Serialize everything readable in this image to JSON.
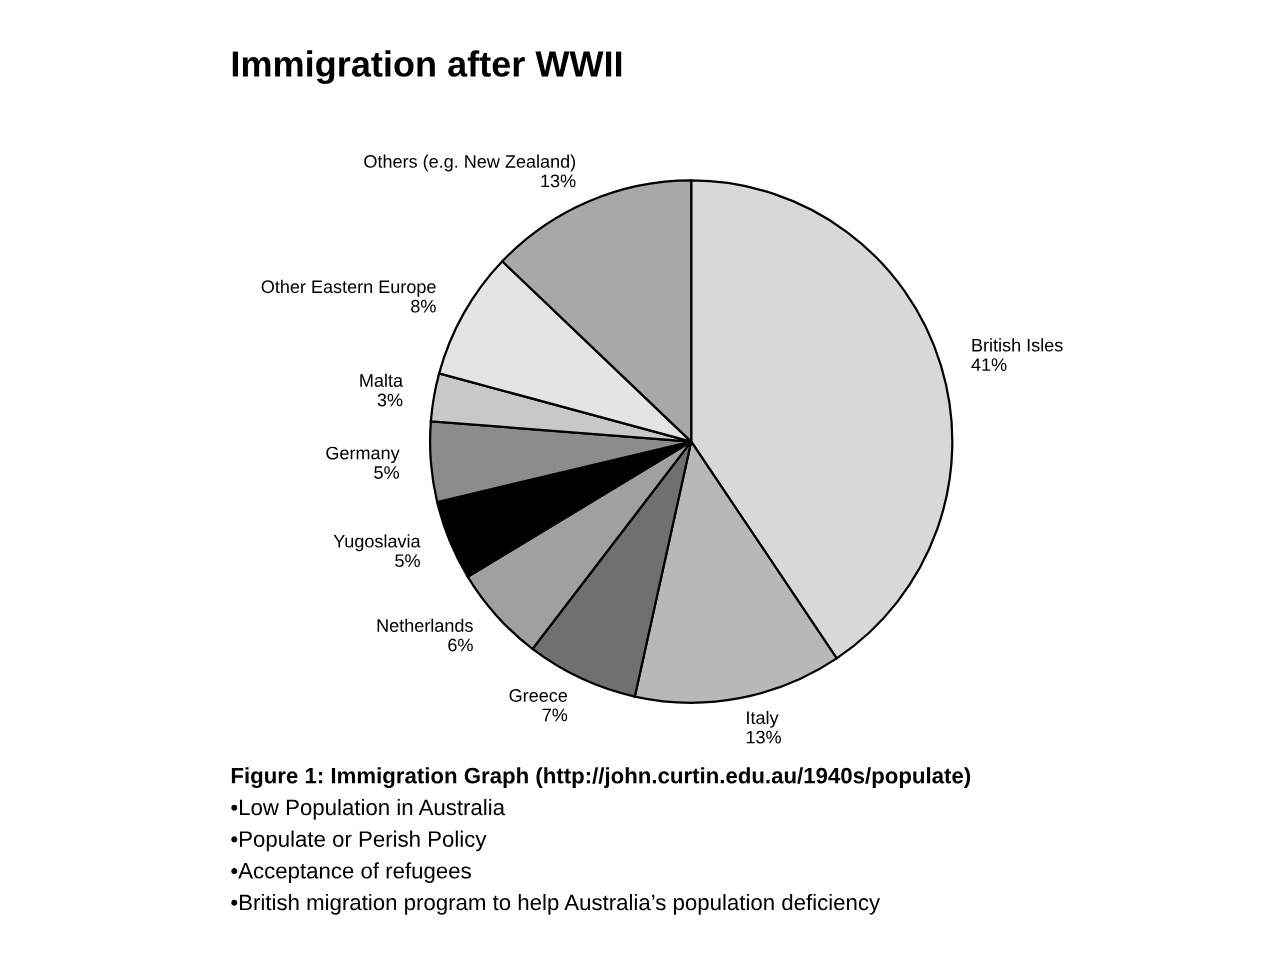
{
  "chart_data": {
    "type": "pie",
    "title": "Immigration after WWII",
    "categories": [
      "British Isles",
      "Italy",
      "Greece",
      "Netherlands",
      "Yugoslavia",
      "Germany",
      "Malta",
      "Other Eastern Europe",
      "Others (e.g. New Zealand)"
    ],
    "values": [
      41,
      13,
      7,
      6,
      5,
      5,
      3,
      8,
      13
    ],
    "value_labels": [
      "41%",
      "13%",
      "7%",
      "6%",
      "5%",
      "5%",
      "3%",
      "8%",
      "13%"
    ],
    "colors": [
      "#d8d8d8",
      "#b8b8b8",
      "#707070",
      "#a0a0a0",
      "#000000",
      "#8c8c8c",
      "#c8c8c8",
      "#e4e4e4",
      "#a8a8a8"
    ],
    "annotations": [
      "Figure 1: Immigration Graph (http://john.curtin.edu.au/1940s/populate)",
      "•Low Population in Australia",
      "•Populate or Perish Policy",
      "•Acceptance of refugees",
      "•British migration program to help Australia’s population deficiency"
    ]
  }
}
